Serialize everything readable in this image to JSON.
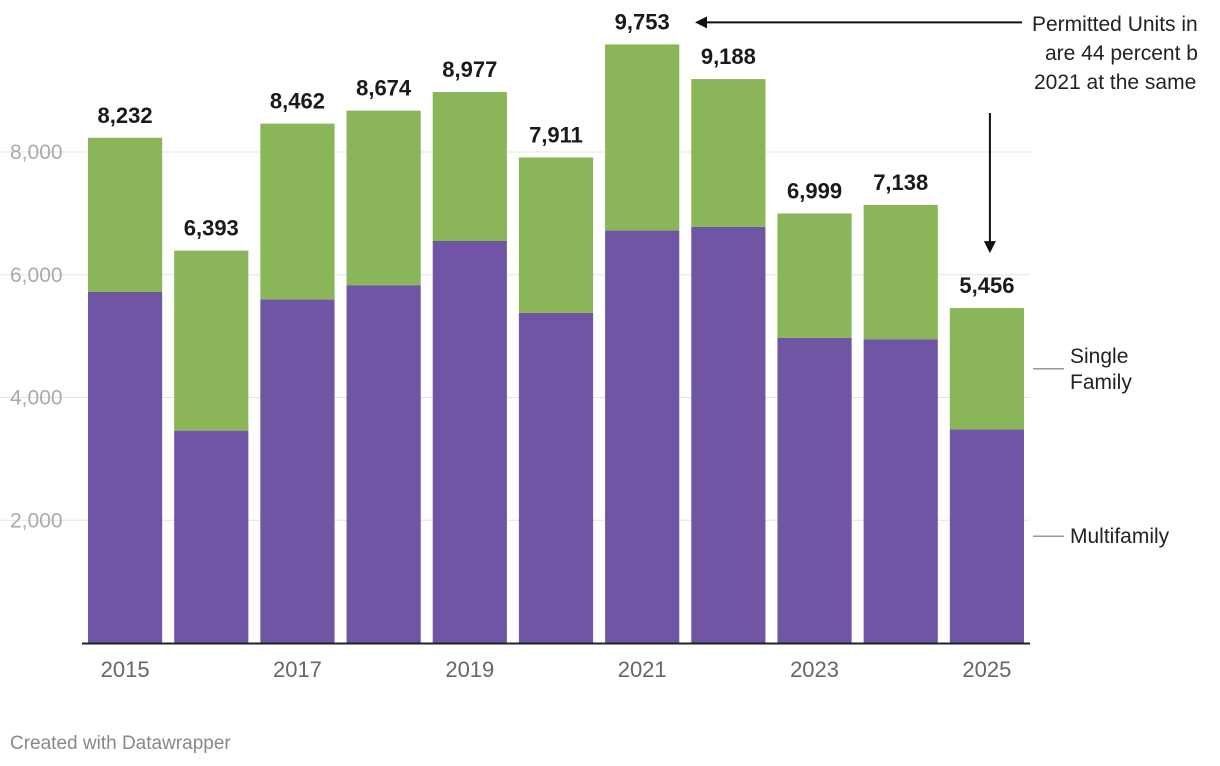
{
  "chart_data": {
    "type": "bar",
    "stacked": true,
    "categories": [
      "2015",
      "2016",
      "2017",
      "2018",
      "2019",
      "2020",
      "2021",
      "2022",
      "2023",
      "2024",
      "2025"
    ],
    "x_tick_labels": [
      "2015",
      "",
      "2017",
      "",
      "2019",
      "",
      "2021",
      "",
      "2023",
      "",
      "2025"
    ],
    "series": [
      {
        "name": "Multifamily",
        "color": "#6f55a3",
        "values": [
          5720,
          3460,
          5600,
          5830,
          6550,
          5380,
          6720,
          6780,
          4970,
          4950,
          3480
        ]
      },
      {
        "name": "Single Family",
        "color": "#8ab559",
        "values": [
          2512,
          2933,
          2862,
          2844,
          2427,
          2531,
          3033,
          2408,
          2029,
          2188,
          1976
        ]
      }
    ],
    "totals": [
      8232,
      6393,
      8462,
      8674,
      8977,
      7911,
      9753,
      9188,
      6999,
      7138,
      5456
    ],
    "total_labels": [
      "8,232",
      "6,393",
      "8,462",
      "8,674",
      "8,977",
      "7,911",
      "9,753",
      "9,188",
      "6,999",
      "7,138",
      "5,456"
    ],
    "y_ticks": [
      2000,
      4000,
      6000,
      8000
    ],
    "y_tick_labels": [
      "2,000",
      "4,000",
      "6,000",
      "8,000"
    ],
    "ylim": [
      0,
      10000
    ],
    "grid": true,
    "legend": [
      {
        "series": "Single Family",
        "lines": [
          "Single",
          "Family"
        ]
      },
      {
        "series": "Multifamily",
        "lines": [
          "Multifamily"
        ]
      }
    ],
    "annotation": {
      "lines": [
        "Permitted Units in",
        "are 44 percent b",
        "2021 at the same"
      ],
      "from_year": "2021",
      "to_year": "2025"
    }
  },
  "footer": {
    "credit": "Created with Datawrapper"
  }
}
